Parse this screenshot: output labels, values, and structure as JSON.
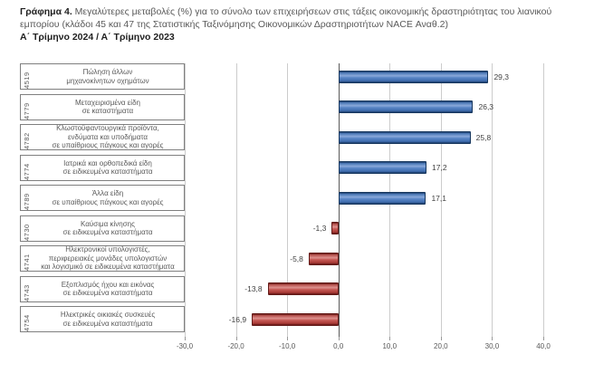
{
  "chart_data": {
    "type": "bar",
    "orientation": "horizontal",
    "title_prefix": "Γράφημα 4.",
    "title": "Μεγαλύτερες μεταβολές (%) για το σύνολο των επιχειρήσεων στις τάξεις οικονομικής δραστηριότητας του λιανικού εμπορίου (κλάδοι 45 και 47 της Στατιστικής Ταξινόμησης Οικονομικών Δραστηριοτήτων NACE Αναθ.2)",
    "subtitle": "Α΄ Τρίμηνο 2024 / Α΄ Τρίμηνο 2023",
    "categories": [
      {
        "code": "4519",
        "label": "Πώληση άλλων\nμηχανοκίνητων οχημάτων"
      },
      {
        "code": "4779",
        "label": "Μεταχειρισμένα είδη\nσε καταστήματα"
      },
      {
        "code": "4782",
        "label": "Κλωστοϋφαντουργικά προϊόντα,\nενδύματα και υποδήματα\nσε υπαίθριους πάγκους και αγορές"
      },
      {
        "code": "4774",
        "label": "Ιατρικά και ορθοπεδικά είδη\nσε ειδικευμένα καταστήματα"
      },
      {
        "code": "4789",
        "label": "Άλλα είδη\nσε υπαίθριους πάγκους και αγορές"
      },
      {
        "code": "4730",
        "label": "Καύσιμα κίνησης\nσε ειδικευμένα καταστήματα"
      },
      {
        "code": "4741",
        "label": "Ηλεκτρονικοί υπολογιστές,\nπεριφερειακές μονάδες υπολογιστών\nκαι λογισμικό σε ειδικευμένα καταστήματα"
      },
      {
        "code": "4743",
        "label": "Εξοπλισμός ήχου και εικόνας\nσε ειδικευμένα καταστήματα"
      },
      {
        "code": "4754",
        "label": "Ηλεκτρικές οικιακές συσκευές\nσε ειδικευμένα καταστήματα"
      }
    ],
    "values": [
      29.3,
      26.3,
      25.8,
      17.2,
      17.1,
      -1.3,
      -5.8,
      -13.8,
      -16.9
    ],
    "value_labels": [
      "29,3",
      "26,3",
      "25,8",
      "17,2",
      "17,1",
      "-1,3",
      "-5,8",
      "-13,8",
      "-16,9"
    ],
    "x_ticks": [
      {
        "value": -30,
        "label": "-30,0"
      },
      {
        "value": -20,
        "label": "-20,0"
      },
      {
        "value": -10,
        "label": "-10,0"
      },
      {
        "value": 0,
        "label": "0,0"
      },
      {
        "value": 10,
        "label": "10,0"
      },
      {
        "value": 20,
        "label": "20,0"
      },
      {
        "value": 30,
        "label": "30,0"
      },
      {
        "value": 40,
        "label": "40,0"
      }
    ],
    "xlim": [
      -30,
      40
    ],
    "grid": true,
    "legend": "none",
    "xlabel": "",
    "ylabel": "",
    "colors": {
      "positive_bar": "#4F81BD",
      "negative_bar": "#C0504D",
      "gridline": "#CCCCCC",
      "zero_line": "#595959",
      "category_text": "#595959",
      "value_text": "#3F3F3F",
      "box_border": "#7F7F7F"
    }
  }
}
